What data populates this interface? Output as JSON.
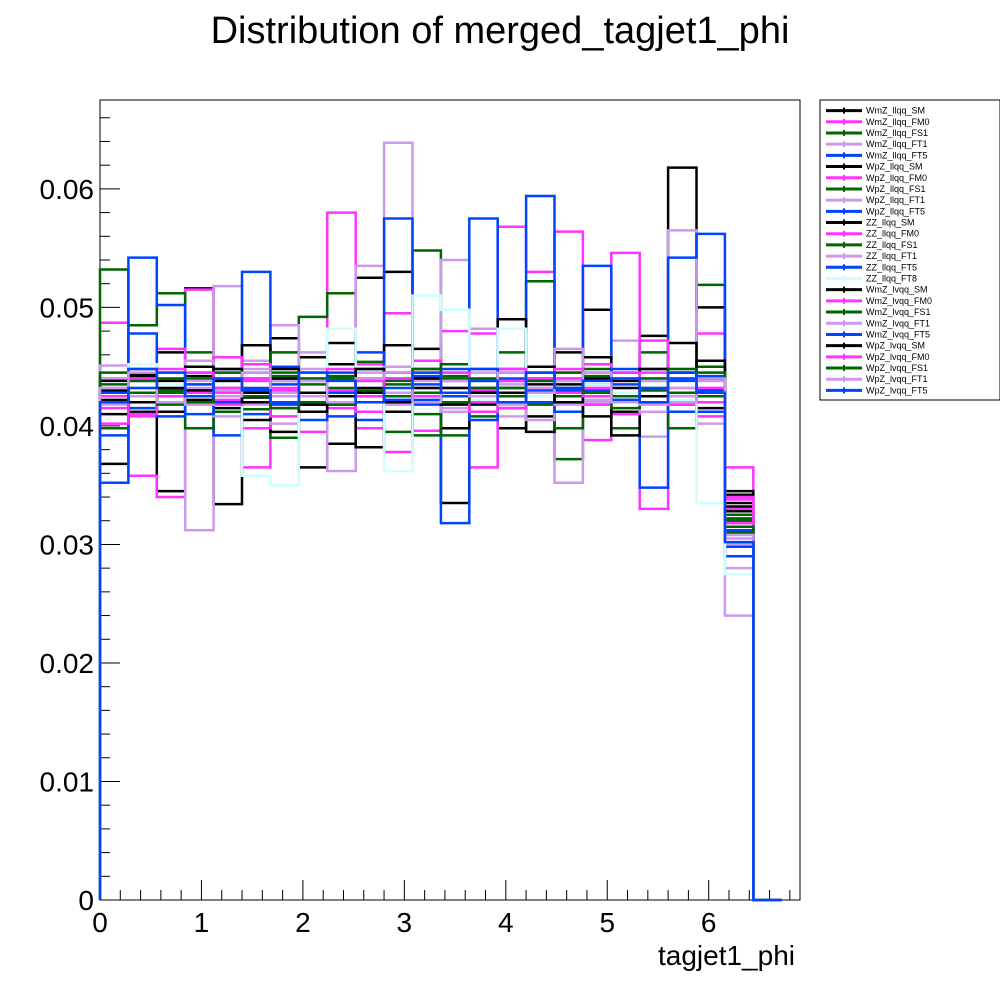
{
  "title": "Distribution of merged_tagjet1_phi",
  "chart_data": {
    "type": "line",
    "title": "Distribution of merged_tagjet1_phi",
    "xlabel": "tagjet1_phi",
    "ylabel": "",
    "xlim": [
      0,
      6.9
    ],
    "ylim": [
      0,
      0.0675
    ],
    "x_ticks": [
      "0",
      "1",
      "2",
      "3",
      "4",
      "5",
      "6"
    ],
    "y_ticks": [
      "0",
      "0.01",
      "0.02",
      "0.03",
      "0.04",
      "0.05",
      "0.06"
    ],
    "bin_edges": [
      0,
      0.28,
      0.56,
      0.84,
      1.12,
      1.4,
      1.68,
      1.96,
      2.24,
      2.52,
      2.8,
      3.08,
      3.36,
      3.64,
      3.92,
      4.2,
      4.48,
      4.76,
      5.04,
      5.32,
      5.6,
      5.88,
      6.16,
      6.44,
      6.72
    ],
    "grid": false,
    "legend_position": "top-right",
    "series": [
      {
        "name": "WmZ_llqq_SM",
        "color": "#000000",
        "values": [
          0.0368,
          0.0444,
          0.0345,
          0.0516,
          0.0334,
          0.0424,
          0.0474,
          0.0365,
          0.0385,
          0.0525,
          0.053,
          0.0465,
          0.0335,
          0.0432,
          0.0398,
          0.0408,
          0.0435,
          0.0498,
          0.0412,
          0.0476,
          0.0618,
          0.05,
          0.0342,
          0
        ]
      },
      {
        "name": "WmZ_llqq_FM0",
        "color": "#ff33ff",
        "values": [
          0.0487,
          0.0358,
          0.034,
          0.0515,
          0.0422,
          0.0365,
          0.043,
          0.0395,
          0.058,
          0.0398,
          0.0495,
          0.0396,
          0.048,
          0.0365,
          0.0568,
          0.053,
          0.0564,
          0.0388,
          0.0546,
          0.033,
          0.0425,
          0.0478,
          0.0365,
          0
        ]
      },
      {
        "name": "WmZ_llqq_FS1",
        "color": "#006600",
        "values": [
          0.0532,
          0.0485,
          0.0512,
          0.0462,
          0.043,
          0.0414,
          0.039,
          0.0492,
          0.0512,
          0.0454,
          0.0395,
          0.0548,
          0.0392,
          0.0448,
          0.0415,
          0.0522,
          0.0372,
          0.0435,
          0.0398,
          0.0462,
          0.0418,
          0.0519,
          0.0325,
          0
        ]
      },
      {
        "name": "WmZ_llqq_FT1",
        "color": "#cc99ee",
        "values": [
          0.0451,
          0.0415,
          0.0432,
          0.0312,
          0.0518,
          0.0455,
          0.0485,
          0.042,
          0.0362,
          0.0535,
          0.0639,
          0.0432,
          0.054,
          0.0482,
          0.0408,
          0.0425,
          0.0352,
          0.0418,
          0.0472,
          0.0391,
          0.0565,
          0.0402,
          0.024,
          0
        ]
      },
      {
        "name": "WmZ_llqq_FT5",
        "color": "#0044ff",
        "values": [
          0.0352,
          0.0542,
          0.0502,
          0.0455,
          0.0392,
          0.053,
          0.0435,
          0.0405,
          0.0418,
          0.0405,
          0.0575,
          0.0442,
          0.0318,
          0.0575,
          0.0428,
          0.0594,
          0.0445,
          0.0535,
          0.0435,
          0.0348,
          0.0542,
          0.0562,
          0.0298,
          0
        ]
      },
      {
        "name": "WpZ_llqq_SM",
        "color": "#000000",
        "values": [
          0.043,
          0.0412,
          0.0462,
          0.0442,
          0.0415,
          0.0468,
          0.0395,
          0.0458,
          0.047,
          0.0382,
          0.0468,
          0.044,
          0.0398,
          0.0428,
          0.049,
          0.0395,
          0.0462,
          0.0458,
          0.0392,
          0.0412,
          0.047,
          0.0415,
          0.0345,
          0
        ]
      },
      {
        "name": "WpZ_llqq_FM0",
        "color": "#ff33ff",
        "values": [
          0.0415,
          0.0408,
          0.0465,
          0.0435,
          0.0458,
          0.0398,
          0.0415,
          0.044,
          0.0415,
          0.0452,
          0.0378,
          0.0455,
          0.042,
          0.0478,
          0.0438,
          0.0432,
          0.0428,
          0.0452,
          0.041,
          0.0472,
          0.0432,
          0.0408,
          0.033,
          0
        ]
      },
      {
        "name": "WpZ_llqq_FS1",
        "color": "#006600",
        "values": [
          0.0398,
          0.0448,
          0.043,
          0.0398,
          0.0432,
          0.044,
          0.0462,
          0.0418,
          0.0442,
          0.0438,
          0.0428,
          0.0392,
          0.0452,
          0.0408,
          0.0462,
          0.0428,
          0.0398,
          0.0448,
          0.0422,
          0.0438,
          0.0398,
          0.045,
          0.031,
          0
        ]
      },
      {
        "name": "WpZ_llqq_FT1",
        "color": "#cc99ee",
        "values": [
          0.0445,
          0.0432,
          0.0428,
          0.0455,
          0.0408,
          0.0438,
          0.0402,
          0.0462,
          0.0425,
          0.0448,
          0.0418,
          0.0432,
          0.0415,
          0.0448,
          0.0435,
          0.0405,
          0.0465,
          0.0422,
          0.0438,
          0.0412,
          0.0448,
          0.0438,
          0.028,
          0
        ]
      },
      {
        "name": "WpZ_llqq_FT5",
        "color": "#0044ff",
        "values": [
          0.0392,
          0.0478,
          0.0408,
          0.0425,
          0.0448,
          0.041,
          0.045,
          0.0428,
          0.0408,
          0.0462,
          0.0428,
          0.0422,
          0.0438,
          0.0405,
          0.0448,
          0.0438,
          0.0412,
          0.043,
          0.0448,
          0.0425,
          0.0412,
          0.0442,
          0.029,
          0
        ]
      },
      {
        "name": "ZZ_llqq_SM",
        "color": "#000000",
        "values": [
          0.0422,
          0.0438,
          0.0412,
          0.045,
          0.0425,
          0.0405,
          0.0438,
          0.0418,
          0.0452,
          0.0432,
          0.0412,
          0.0448,
          0.0428,
          0.0418,
          0.0432,
          0.045,
          0.042,
          0.0408,
          0.0445,
          0.043,
          0.0425,
          0.0455,
          0.0335,
          0
        ]
      },
      {
        "name": "ZZ_llqq_FM0",
        "color": "#ff33ff",
        "values": [
          0.0402,
          0.0425,
          0.044,
          0.0418,
          0.0432,
          0.0452,
          0.0408,
          0.0428,
          0.044,
          0.0412,
          0.0445,
          0.0425,
          0.0438,
          0.043,
          0.0415,
          0.0438,
          0.0448,
          0.0418,
          0.0428,
          0.044,
          0.0418,
          0.0432,
          0.034,
          0
        ]
      },
      {
        "name": "ZZ_llqq_FS1",
        "color": "#006600",
        "values": [
          0.0435,
          0.042,
          0.0428,
          0.0445,
          0.0412,
          0.043,
          0.0442,
          0.0435,
          0.0418,
          0.044,
          0.0435,
          0.041,
          0.0442,
          0.0432,
          0.042,
          0.0418,
          0.0438,
          0.0442,
          0.0415,
          0.0432,
          0.0445,
          0.042,
          0.032,
          0
        ]
      },
      {
        "name": "ZZ_llqq_FT1",
        "color": "#cc99ee",
        "values": [
          0.0418,
          0.0448,
          0.042,
          0.0432,
          0.0445,
          0.0418,
          0.0425,
          0.0448,
          0.0432,
          0.042,
          0.045,
          0.0438,
          0.0412,
          0.0445,
          0.0425,
          0.0445,
          0.0418,
          0.0432,
          0.044,
          0.0418,
          0.0432,
          0.0445,
          0.03,
          0
        ]
      },
      {
        "name": "ZZ_llqq_FT5",
        "color": "#0044ff",
        "values": [
          0.044,
          0.0415,
          0.0445,
          0.041,
          0.0438,
          0.0445,
          0.0418,
          0.0445,
          0.0428,
          0.0448,
          0.0422,
          0.0418,
          0.0448,
          0.042,
          0.044,
          0.043,
          0.044,
          0.0425,
          0.042,
          0.0448,
          0.0438,
          0.0412,
          0.0315,
          0
        ]
      },
      {
        "name": "ZZ_llqq_FT8",
        "color": "#ccffff",
        "values": [
          0.0425,
          0.0452,
          0.0435,
          0.044,
          0.042,
          0.0358,
          0.035,
          0.0445,
          0.0482,
          0.043,
          0.0362,
          0.051,
          0.0498,
          0.0422,
          0.0482,
          0.0425,
          0.0432,
          0.0435,
          0.0428,
          0.0432,
          0.0422,
          0.0335,
          0.0275,
          0
        ]
      },
      {
        "name": "WmZ_lvqq_SM",
        "color": "#000000",
        "values": [
          0.041,
          0.0442,
          0.0432,
          0.0422,
          0.0438,
          0.0428,
          0.0448,
          0.0412,
          0.044,
          0.0428,
          0.0445,
          0.0432,
          0.0418,
          0.0438,
          0.0428,
          0.044,
          0.0432,
          0.042,
          0.0438,
          0.0448,
          0.042,
          0.0428,
          0.0328,
          0
        ]
      },
      {
        "name": "WmZ_lvqq_FM0",
        "color": "#ff33ff",
        "values": [
          0.0432,
          0.041,
          0.0448,
          0.0428,
          0.0418,
          0.044,
          0.0432,
          0.042,
          0.0448,
          0.0438,
          0.042,
          0.0445,
          0.0432,
          0.0412,
          0.0448,
          0.042,
          0.044,
          0.0432,
          0.0445,
          0.042,
          0.044,
          0.0432,
          0.0318,
          0
        ]
      },
      {
        "name": "WmZ_lvqq_FS1",
        "color": "#006600",
        "values": [
          0.042,
          0.0438,
          0.0418,
          0.044,
          0.0445,
          0.042,
          0.0415,
          0.044,
          0.0432,
          0.042,
          0.0438,
          0.0428,
          0.044,
          0.0425,
          0.0432,
          0.0445,
          0.0425,
          0.044,
          0.0425,
          0.043,
          0.0448,
          0.0425,
          0.0322,
          0
        ]
      },
      {
        "name": "WmZ_lvqq_FT1",
        "color": "#cc99ee",
        "values": [
          0.044,
          0.0425,
          0.044,
          0.0418,
          0.043,
          0.0448,
          0.0438,
          0.0425,
          0.042,
          0.0445,
          0.0428,
          0.042,
          0.0445,
          0.044,
          0.0418,
          0.0432,
          0.0445,
          0.042,
          0.0432,
          0.044,
          0.0425,
          0.0438,
          0.0305,
          0
        ]
      },
      {
        "name": "WmZ_lvqq_FT5",
        "color": "#0044ff",
        "values": [
          0.0428,
          0.0448,
          0.0425,
          0.0435,
          0.042,
          0.0432,
          0.0428,
          0.0438,
          0.0445,
          0.0425,
          0.044,
          0.0435,
          0.0425,
          0.0448,
          0.0438,
          0.042,
          0.043,
          0.0445,
          0.0422,
          0.0432,
          0.044,
          0.043,
          0.0312,
          0
        ]
      },
      {
        "name": "WpZ_lvqq_SM",
        "color": "#000000",
        "values": [
          0.0438,
          0.042,
          0.0438,
          0.043,
          0.0448,
          0.042,
          0.044,
          0.0428,
          0.0425,
          0.0448,
          0.042,
          0.044,
          0.0432,
          0.0428,
          0.0445,
          0.0435,
          0.042,
          0.044,
          0.0432,
          0.0425,
          0.0445,
          0.044,
          0.0332,
          0
        ]
      },
      {
        "name": "WpZ_lvqq_FM0",
        "color": "#ff33ff",
        "values": [
          0.0425,
          0.044,
          0.0425,
          0.0445,
          0.0428,
          0.0438,
          0.042,
          0.0445,
          0.043,
          0.0425,
          0.044,
          0.0425,
          0.0445,
          0.042,
          0.0438,
          0.044,
          0.0428,
          0.0425,
          0.044,
          0.0445,
          0.0428,
          0.042,
          0.0338,
          0
        ]
      },
      {
        "name": "WpZ_lvqq_FS1",
        "color": "#006600",
        "values": [
          0.0445,
          0.0428,
          0.044,
          0.042,
          0.044,
          0.0425,
          0.0445,
          0.042,
          0.044,
          0.043,
          0.0425,
          0.0448,
          0.042,
          0.044,
          0.0425,
          0.0438,
          0.0445,
          0.0428,
          0.042,
          0.044,
          0.0428,
          0.0445,
          0.0315,
          0
        ]
      },
      {
        "name": "WpZ_lvqq_FT1",
        "color": "#cc99ee",
        "values": [
          0.0432,
          0.0445,
          0.042,
          0.0438,
          0.0425,
          0.0445,
          0.0428,
          0.0438,
          0.042,
          0.044,
          0.0445,
          0.042,
          0.0438,
          0.0425,
          0.0445,
          0.0428,
          0.0438,
          0.0445,
          0.042,
          0.0438,
          0.042,
          0.044,
          0.0308,
          0
        ]
      },
      {
        "name": "WpZ_lvqq_FT5",
        "color": "#0044ff",
        "values": [
          0.042,
          0.0432,
          0.0445,
          0.0425,
          0.044,
          0.043,
          0.042,
          0.0445,
          0.0438,
          0.042,
          0.0432,
          0.0445,
          0.0428,
          0.0438,
          0.042,
          0.0445,
          0.0432,
          0.0438,
          0.044,
          0.042,
          0.0445,
          0.0428,
          0.0302,
          0
        ]
      }
    ]
  }
}
